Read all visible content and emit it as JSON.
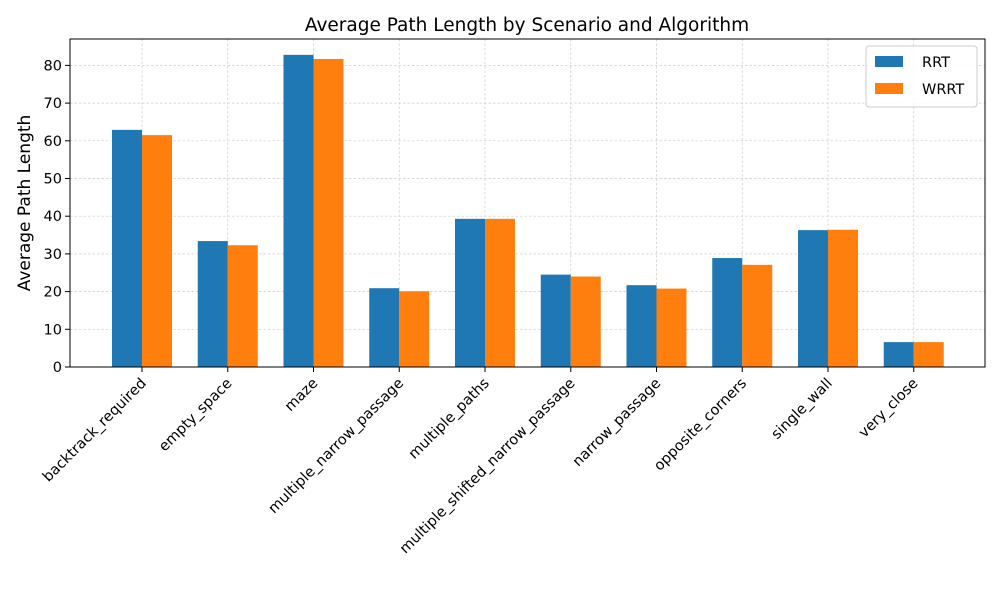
{
  "chart_data": {
    "type": "bar",
    "title": "Average Path Length by Scenario and Algorithm",
    "xlabel": "",
    "ylabel": "Average Path Length",
    "ylim": [
      0,
      87
    ],
    "yticks": [
      0,
      10,
      20,
      30,
      40,
      50,
      60,
      70,
      80
    ],
    "grid": true,
    "legend_position": "top-right",
    "categories": [
      "backtrack_required",
      "empty_space",
      "maze",
      "multiple_narrow_passage",
      "multiple_paths",
      "multiple_shifted_narrow_passage",
      "narrow_passage",
      "opposite_corners",
      "single_wall",
      "very_close"
    ],
    "series": [
      {
        "name": "RRT",
        "color": "#1f77b4",
        "values": [
          62.9,
          33.4,
          82.8,
          20.9,
          39.3,
          24.5,
          21.7,
          28.9,
          36.3,
          6.6
        ]
      },
      {
        "name": "WRRT",
        "color": "#ff7f0e",
        "values": [
          61.5,
          32.3,
          81.7,
          20.1,
          39.3,
          24.0,
          20.8,
          27.1,
          36.4,
          6.6
        ]
      }
    ]
  }
}
